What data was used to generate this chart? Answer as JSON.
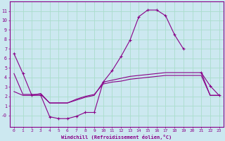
{
  "xlabel": "Windchill (Refroidissement éolien,°C)",
  "bg_color": "#cce8f0",
  "line_color": "#880088",
  "grid_color": "#aaddcc",
  "xlim": [
    -0.5,
    23.5
  ],
  "ylim": [
    -1.2,
    12.0
  ],
  "ytick_vals": [
    0,
    1,
    2,
    3,
    4,
    5,
    6,
    7,
    8,
    9,
    10,
    11
  ],
  "ytick_labels": [
    "-0",
    "1",
    "2",
    "3",
    "4",
    "5",
    "6",
    "7",
    "8",
    "9",
    "10",
    "11"
  ],
  "xticks": [
    0,
    1,
    2,
    3,
    4,
    5,
    6,
    7,
    8,
    9,
    10,
    11,
    12,
    13,
    14,
    15,
    16,
    17,
    18,
    19,
    20,
    21,
    22,
    23
  ],
  "curve1_x": [
    0,
    1,
    2,
    3,
    4,
    5,
    6,
    7,
    8,
    9,
    10,
    11,
    12,
    13,
    14,
    15,
    16,
    17,
    18,
    19,
    20,
    21,
    22,
    23
  ],
  "curve1_y": [
    6.5,
    4.4,
    2.1,
    2.1,
    -0.15,
    -0.35,
    -0.35,
    -0.1,
    0.3,
    0.3,
    3.5,
    4.7,
    6.2,
    7.9,
    10.4,
    11.1,
    11.1,
    10.5,
    8.5,
    7.0,
    null,
    4.5,
    3.1,
    2.1
  ],
  "curve2_x": [
    0,
    1,
    2,
    3,
    4,
    5,
    6,
    7,
    8,
    9,
    10,
    11,
    12,
    13,
    14,
    15,
    16,
    17,
    18,
    19,
    20,
    21,
    22,
    23
  ],
  "curve2_y": [
    4.4,
    2.2,
    2.2,
    2.2,
    1.3,
    1.3,
    1.3,
    1.6,
    1.9,
    2.1,
    3.5,
    3.7,
    3.9,
    4.1,
    4.2,
    4.3,
    4.4,
    4.5,
    4.5,
    4.5,
    4.5,
    4.5,
    2.1,
    2.1
  ],
  "curve3_x": [
    0,
    1,
    2,
    3,
    4,
    5,
    6,
    7,
    8,
    9,
    10,
    11,
    12,
    13,
    14,
    15,
    16,
    17,
    18,
    19,
    20,
    21,
    22,
    23
  ],
  "curve3_y": [
    2.5,
    2.1,
    2.1,
    2.3,
    1.3,
    1.3,
    1.3,
    1.7,
    2.0,
    2.2,
    3.3,
    3.5,
    3.6,
    3.8,
    3.9,
    4.0,
    4.1,
    4.2,
    4.2,
    4.2,
    4.2,
    4.2,
    2.1,
    2.1
  ]
}
